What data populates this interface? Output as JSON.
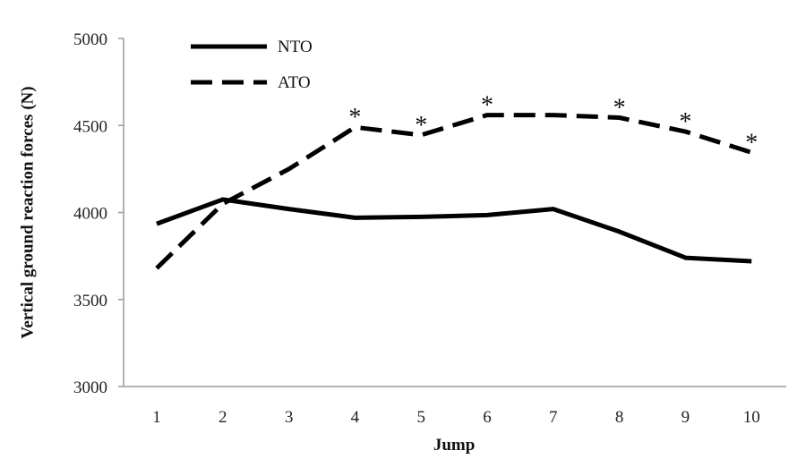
{
  "chart_data": {
    "type": "line",
    "xlabel": "Jump",
    "ylabel": "Vertical ground reaction forces (N)",
    "x": [
      1,
      2,
      3,
      4,
      5,
      6,
      7,
      8,
      9,
      10
    ],
    "ylim": [
      3000,
      5000
    ],
    "yticks": [
      3000,
      3500,
      4000,
      4500,
      5000
    ],
    "grid": false,
    "legend_position": "top-left",
    "series": [
      {
        "name": "NTO",
        "style": "solid",
        "color": "#000000",
        "values": [
          3935,
          4075,
          4020,
          3970,
          3975,
          3985,
          4020,
          3890,
          3740,
          3720
        ]
      },
      {
        "name": "ATO",
        "style": "dashed",
        "color": "#000000",
        "values": [
          3680,
          4050,
          4250,
          4490,
          4445,
          4560,
          4560,
          4545,
          4465,
          4345
        ]
      }
    ],
    "annotations": [
      {
        "x": 4,
        "text": "*"
      },
      {
        "x": 5,
        "text": "*"
      },
      {
        "x": 6,
        "text": "*"
      },
      {
        "x": 8,
        "text": "*"
      },
      {
        "x": 9,
        "text": "*"
      },
      {
        "x": 10,
        "text": "*"
      }
    ]
  }
}
